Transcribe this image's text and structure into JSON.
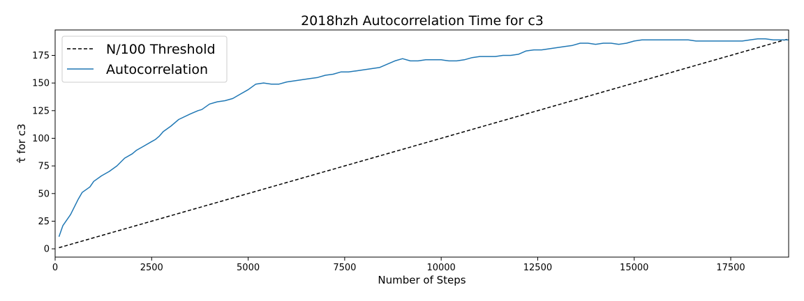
{
  "chart_data": {
    "type": "line",
    "title": "2018hzh Autocorrelation Time for c3",
    "xlabel": "Number of Steps",
    "ylabel": "τ̂ for c3",
    "xlim": [
      0,
      19000
    ],
    "ylim": [
      -7.5,
      198
    ],
    "xticks": [
      0,
      2500,
      5000,
      7500,
      10000,
      12500,
      15000,
      17500
    ],
    "yticks": [
      0,
      25,
      50,
      75,
      100,
      125,
      150,
      175
    ],
    "legend": {
      "position": "top-left"
    },
    "series": [
      {
        "name": "N/100 Threshold",
        "color": "#000000",
        "style": "dashed",
        "x": [
          100,
          19000
        ],
        "y": [
          1,
          190
        ]
      },
      {
        "name": "Autocorrelation",
        "color": "#1f77b4",
        "style": "solid",
        "x": [
          100,
          200,
          400,
          600,
          700,
          900,
          1000,
          1200,
          1400,
          1600,
          1800,
          2000,
          2100,
          2300,
          2500,
          2600,
          2700,
          2800,
          3000,
          3200,
          3500,
          3700,
          3800,
          4000,
          4200,
          4400,
          4600,
          4800,
          5000,
          5200,
          5400,
          5600,
          5800,
          6000,
          6200,
          6400,
          6600,
          6800,
          7000,
          7200,
          7400,
          7600,
          7800,
          8000,
          8200,
          8400,
          8600,
          8800,
          9000,
          9200,
          9400,
          9600,
          9800,
          10000,
          10200,
          10400,
          10600,
          10800,
          11000,
          11200,
          11400,
          11600,
          11800,
          12000,
          12200,
          12400,
          12600,
          12800,
          13000,
          13200,
          13400,
          13600,
          13800,
          14000,
          14200,
          14400,
          14600,
          14800,
          15000,
          15200,
          15400,
          15600,
          15800,
          16000,
          16200,
          16400,
          16600,
          16800,
          17000,
          17200,
          17400,
          17600,
          17800,
          18000,
          18200,
          18400,
          18600,
          18800,
          19000
        ],
        "y": [
          11,
          21,
          31,
          45,
          51,
          56,
          61,
          66,
          70,
          75,
          82,
          86,
          89,
          93,
          97,
          99,
          102,
          106,
          111,
          117,
          122,
          125,
          126,
          131,
          133,
          134,
          136,
          140,
          144,
          149,
          150,
          149,
          149,
          151,
          152,
          153,
          154,
          155,
          157,
          158,
          160,
          160,
          161,
          162,
          163,
          164,
          167,
          170,
          172,
          170,
          170,
          171,
          171,
          171,
          170,
          170,
          171,
          173,
          174,
          174,
          174,
          175,
          175,
          176,
          179,
          180,
          180,
          181,
          182,
          183,
          184,
          186,
          186,
          185,
          186,
          186,
          185,
          186,
          188,
          189,
          189,
          189,
          189,
          189,
          189,
          189,
          188,
          188,
          188,
          188,
          188,
          188,
          188,
          189,
          190,
          190,
          189,
          189,
          189
        ]
      }
    ]
  }
}
